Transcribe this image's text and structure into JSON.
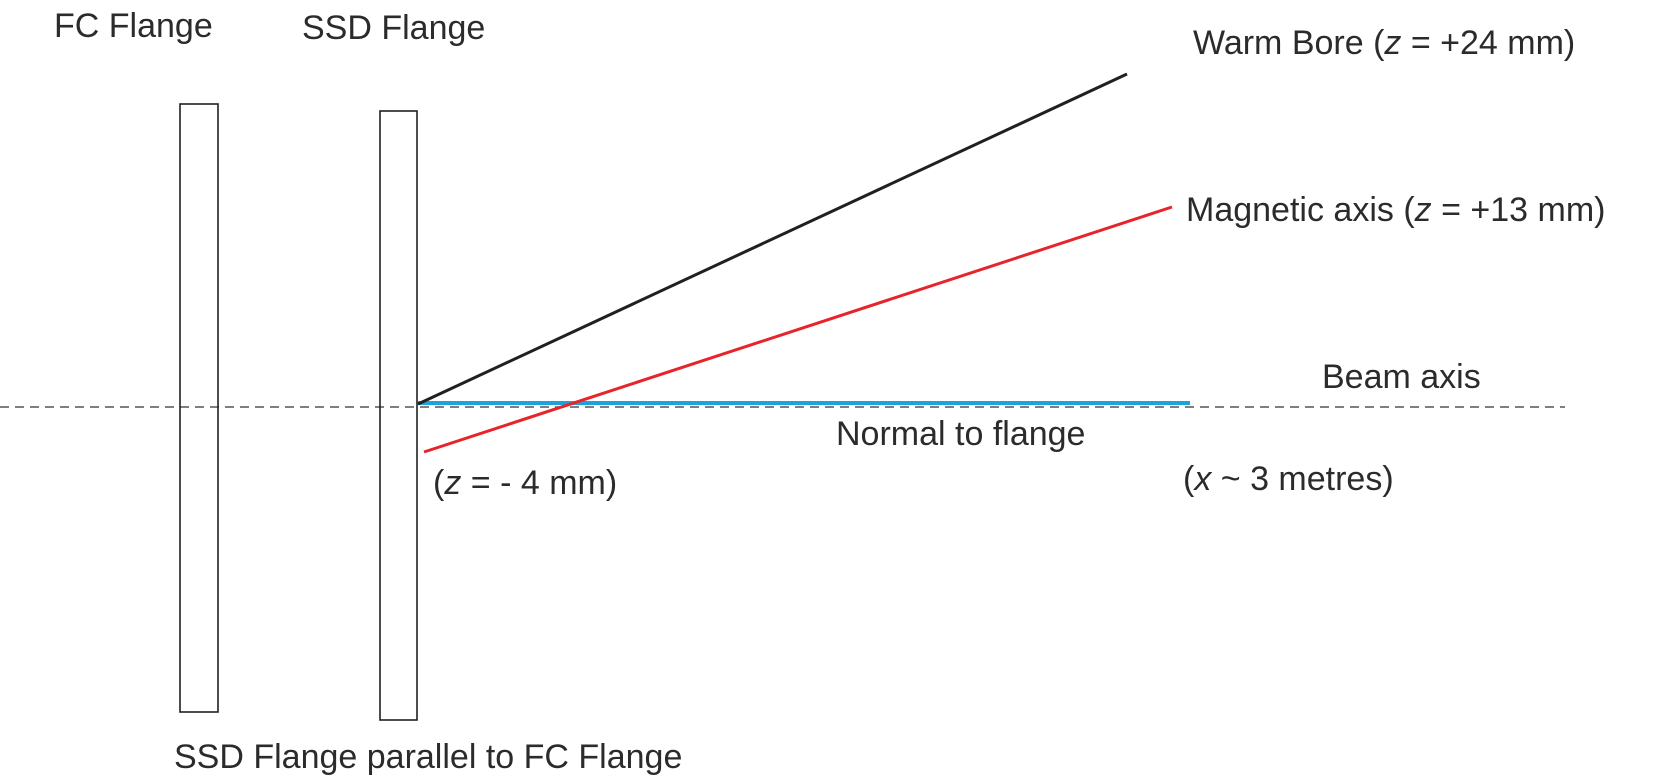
{
  "labels": {
    "fc_flange": "FC Flange",
    "ssd_flange": "SSD Flange",
    "warm_bore": {
      "prefix": "Warm Bore (",
      "var": "z",
      "suffix": " = +24 mm)"
    },
    "magnetic_axis": {
      "prefix": "Magnetic axis (",
      "var": "z",
      "suffix": " = +13 mm)"
    },
    "beam_axis": "Beam axis",
    "normal_to_flange": "Normal to flange",
    "z_offset": {
      "prefix": "(",
      "var": "z",
      "suffix": " = - 4 mm)"
    },
    "x_distance": {
      "prefix": "(",
      "var": "x",
      "suffix": " ~ 3 metres)"
    },
    "caption": "SSD Flange parallel to FC Flange"
  },
  "colors": {
    "warm_bore_line": "#231f20",
    "magnetic_axis_line": "#e8242b",
    "normal_line": "#1aa3dd",
    "beam_axis_line": "#555555",
    "flange_outline": "#231f20",
    "text": "#2b2b2b"
  }
}
